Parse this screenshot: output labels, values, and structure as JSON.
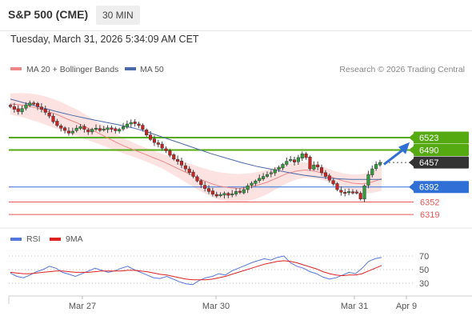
{
  "header": {
    "title": "S&P 500 (CME)",
    "timeframe": "30 MIN",
    "timestamp": "Tuesday, March 31, 2026 5:34:09 AM CET"
  },
  "legend": {
    "ma20_label": "MA 20 + Bollinger Bands",
    "ma50_label": "MA 50",
    "credit": "Research © 2026 Trading Central"
  },
  "rsi_legend": {
    "rsi_label": "RSI",
    "ma_label": "9MA"
  },
  "colors": {
    "green_level": "#55aa11",
    "blue_level": "#2f6fd6",
    "red_level": "#ee5555",
    "ma50": "#4a6aa8",
    "ma20": "#ee8888",
    "band_fill": "#fde2e2",
    "price_box": "#333333",
    "arrow": "#2f6fd6",
    "rsi_line": "#5577dd",
    "rsi_ma": "#dd2222"
  },
  "chart_data": [
    {
      "type": "candlestick",
      "y_range": [
        6298,
        6680
      ],
      "x_ticks": [
        "Mar 27",
        "Mar 30",
        "Mar 31",
        "Apr 9"
      ],
      "levels": [
        {
          "value": 6523,
          "label": "6523",
          "kind": "resistance"
        },
        {
          "value": 6490,
          "label": "6490",
          "kind": "resistance"
        },
        {
          "value": 6457,
          "label": "6457",
          "kind": "current"
        },
        {
          "value": 6392,
          "label": "6392",
          "kind": "pivot"
        },
        {
          "value": 6352,
          "label": "6352",
          "kind": "support"
        },
        {
          "value": 6319,
          "label": "6319",
          "kind": "support"
        }
      ],
      "close": [
        6605,
        6598,
        6592,
        6600,
        6610,
        6615,
        6612,
        6605,
        6598,
        6590,
        6580,
        6565,
        6555,
        6548,
        6542,
        6535,
        6540,
        6548,
        6552,
        6545,
        6538,
        6545,
        6548,
        6542,
        6546,
        6549,
        6545,
        6541,
        6545,
        6552,
        6559,
        6563,
        6560,
        6555,
        6545,
        6530,
        6518,
        6510,
        6505,
        6495,
        6488,
        6476,
        6466,
        6460,
        6450,
        6440,
        6430,
        6420,
        6408,
        6398,
        6388,
        6380,
        6373,
        6368,
        6372,
        6375,
        6370,
        6374,
        6380,
        6378,
        6385,
        6395,
        6402,
        6408,
        6415,
        6420,
        6425,
        6430,
        6438,
        6444,
        6452,
        6460,
        6465,
        6458,
        6470,
        6480,
        6470,
        6440,
        6450,
        6445,
        6430,
        6420,
        6410,
        6400,
        6385,
        6378,
        6375,
        6380,
        6378,
        6377,
        6360,
        6395,
        6425,
        6440,
        6452,
        6457
      ],
      "ma20_approx": [
        6612,
        6610,
        6606,
        6600,
        6592,
        6583,
        6572,
        6562,
        6550,
        6538,
        6525,
        6512,
        6500,
        6490,
        6480,
        6470,
        6460,
        6448,
        6436,
        6424,
        6412,
        6402,
        6394,
        6390,
        6388,
        6391,
        6397,
        6405,
        6416,
        6427,
        6434,
        6437,
        6434,
        6427,
        6416,
        6408,
        6402,
        6400,
        6405,
        6414
      ],
      "ma50_approx": [
        6625,
        6614,
        6603,
        6592,
        6582,
        6573,
        6565,
        6557,
        6548,
        6536,
        6522,
        6508,
        6494,
        6480,
        6468,
        6456,
        6446,
        6438,
        6430,
        6423,
        6418,
        6414,
        6412,
        6412,
        6412
      ],
      "forecast_arrow": {
        "from": 6452,
        "to": 6498
      }
    },
    {
      "type": "line",
      "levels": [
        70,
        50,
        30
      ],
      "series": [
        {
          "name": "RSI",
          "values": [
            45,
            40,
            38,
            42,
            47,
            50,
            55,
            52,
            46,
            43,
            40,
            44,
            48,
            52,
            49,
            46,
            48,
            52,
            55,
            50,
            46,
            42,
            38,
            37,
            40,
            36,
            32,
            29,
            28,
            34,
            38,
            40,
            44,
            42,
            48,
            52,
            56,
            60,
            63,
            66,
            64,
            68,
            70,
            60,
            55,
            52,
            47,
            44,
            39,
            36,
            38,
            42,
            46,
            44,
            52,
            62,
            66,
            68
          ]
        },
        {
          "name": "9MA",
          "values": [
            46,
            45,
            44,
            44,
            45,
            46,
            47,
            48,
            48,
            47,
            46,
            46,
            46,
            47,
            48,
            48,
            48,
            48,
            49,
            49,
            48,
            47,
            45,
            43,
            42,
            40,
            38,
            36,
            35,
            35,
            35,
            36,
            38,
            40,
            43,
            46,
            49,
            52,
            55,
            58,
            60,
            62,
            63,
            62,
            60,
            57,
            54,
            51,
            47,
            44,
            42,
            41,
            42,
            42,
            44,
            48,
            52,
            56
          ]
        }
      ]
    }
  ]
}
